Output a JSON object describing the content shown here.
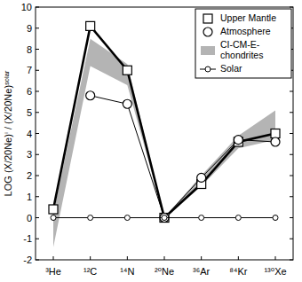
{
  "chart_data": {
    "type": "line",
    "y_label": "LOG (X/20Ne)ⁱ / (X/20Ne)ˢᵒˡᵃʳ",
    "categories": [
      "³He",
      "¹²C",
      "¹⁴N",
      "²⁰Ne",
      "³⁶Ar",
      "⁸⁴Kr",
      "¹³⁰Xe"
    ],
    "ylim": [
      -2,
      10
    ],
    "yticks": [
      -2,
      -1,
      0,
      1,
      2,
      3,
      4,
      5,
      6,
      7,
      8,
      9,
      10
    ],
    "legend": "upper right",
    "series": [
      {
        "name": "Upper Mantle",
        "color": "#000000",
        "marker": "square",
        "line_style": "thick",
        "values": [
          0.4,
          9.1,
          7.0,
          0,
          1.6,
          3.6,
          4.0
        ]
      },
      {
        "name": "Atmosphere",
        "color": "#000000",
        "marker": "circle",
        "line_style": "thin",
        "values": [
          null,
          5.8,
          5.4,
          0,
          1.9,
          3.7,
          3.6
        ]
      },
      {
        "name": "CI-CM-E-chondrites",
        "color": "#b4b4b4",
        "type": "band",
        "low": [
          -1.4,
          7.2,
          6.3,
          0,
          1.5,
          3.3,
          3.7
        ],
        "high": [
          0.2,
          8.5,
          7.3,
          0,
          2.0,
          3.9,
          5.1
        ]
      },
      {
        "name": "Solar",
        "color": "#000000",
        "marker": "small-circle",
        "line_style": "thin",
        "values": [
          0,
          0,
          0,
          0,
          0,
          0,
          0
        ]
      }
    ]
  }
}
